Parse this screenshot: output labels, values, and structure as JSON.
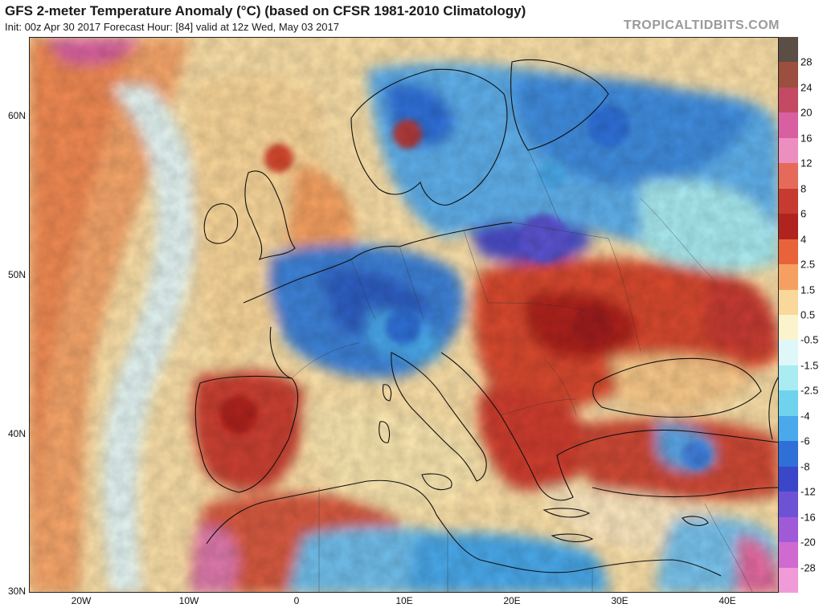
{
  "header": {
    "title": "GFS 2-meter Temperature Anomaly (°C) (based on CFSR 1981-2010 Climatology)",
    "subtitle": "Init: 00z Apr 30 2017   Forecast Hour: [84]   valid at 12z Wed, May 03 2017",
    "brand": "TROPICALTIDBITS.COM"
  },
  "map": {
    "lat_labels": [
      "60N",
      "50N",
      "40N",
      "30N"
    ],
    "lon_labels": [
      "20W",
      "10W",
      "0",
      "10E",
      "20E",
      "30E",
      "40E"
    ]
  },
  "colorbar": {
    "labels": [
      "28",
      "24",
      "20",
      "16",
      "12",
      "8",
      "6",
      "4",
      "2.5",
      "1.5",
      "0.5",
      "-0.5",
      "-1.5",
      "-2.5",
      "-4",
      "-6",
      "-8",
      "-12",
      "-16",
      "-20",
      "-28"
    ],
    "colors": [
      "#5a4e45",
      "#9c4f3f",
      "#c44a63",
      "#d960a0",
      "#ec8fc0",
      "#e66a5a",
      "#c73a30",
      "#b0241f",
      "#e8633a",
      "#f5a060",
      "#fad79a",
      "#fbf3cc",
      "#dff7f8",
      "#a9ecf2",
      "#6fd3ee",
      "#4aa9ea",
      "#2f6fd8",
      "#3b47c9",
      "#6d52d6",
      "#a05ad8",
      "#d06ad0",
      "#f09ad8"
    ]
  }
}
